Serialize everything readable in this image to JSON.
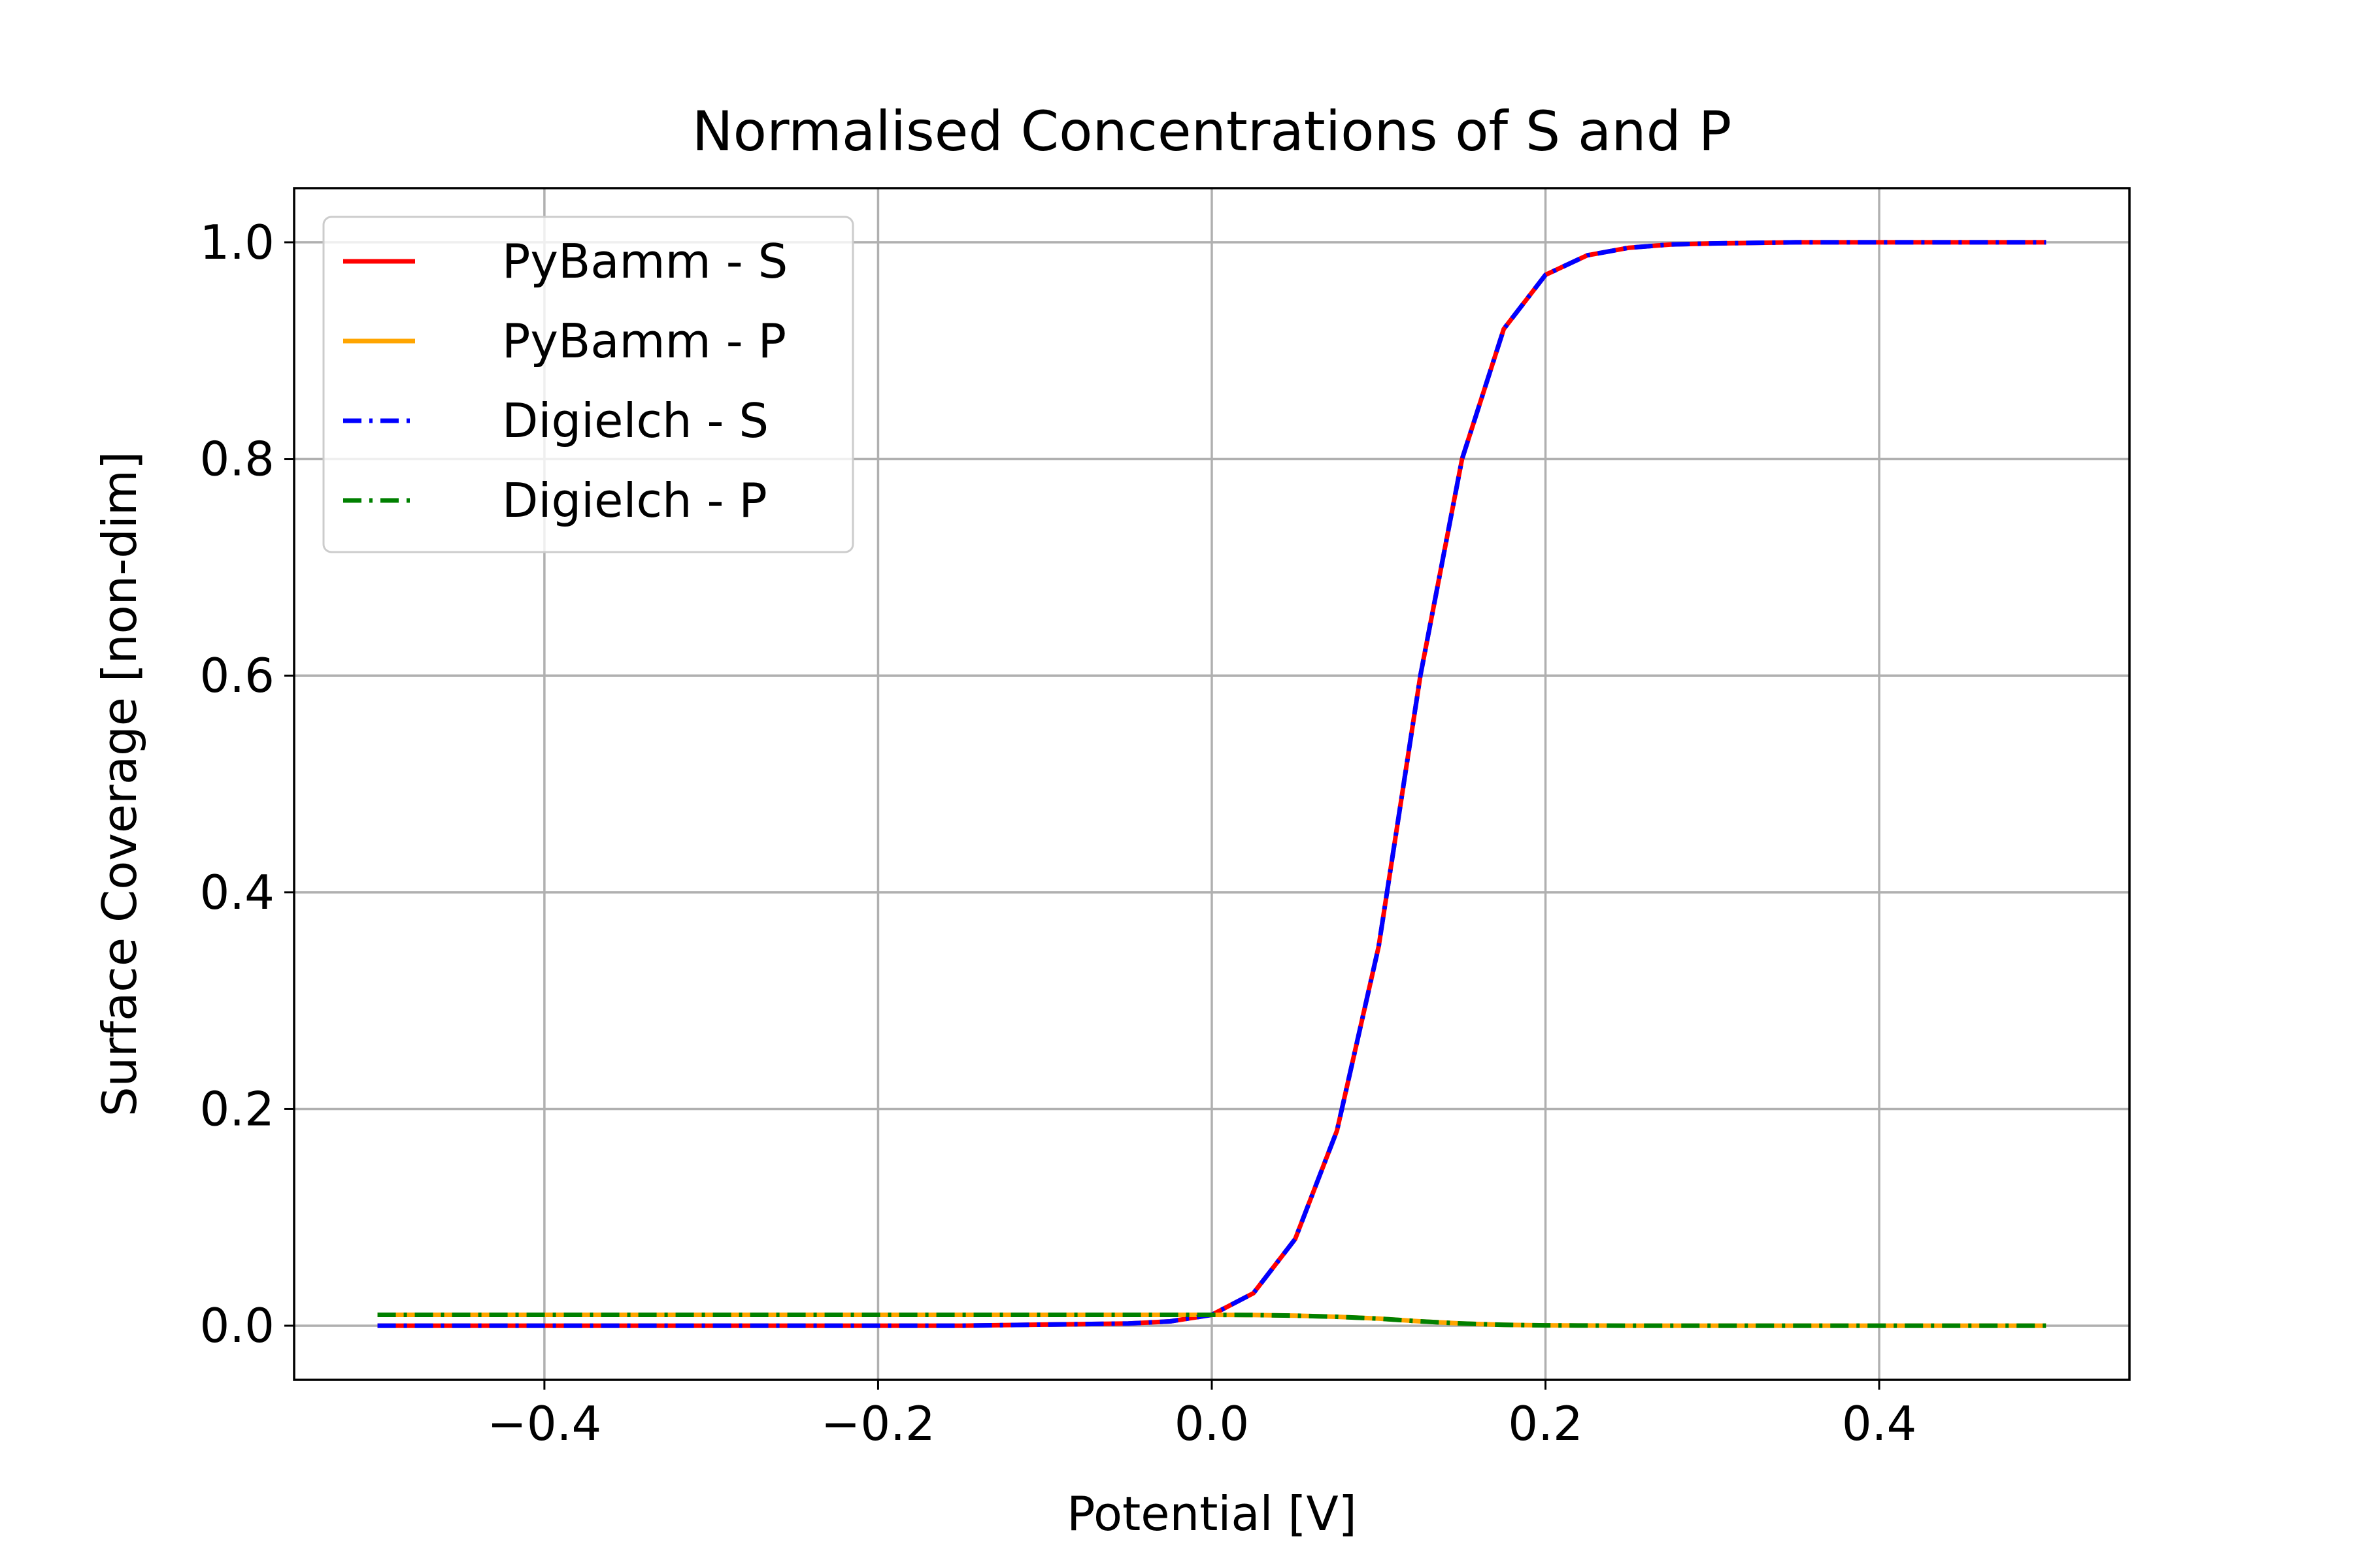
{
  "chart_data": {
    "type": "line",
    "title": "Normalised Concentrations of S and P",
    "xlabel": "Potential [V]",
    "ylabel": "Surface Coverage [non-dim]",
    "xlim": [
      -0.55,
      0.55
    ],
    "ylim": [
      -0.05,
      1.05
    ],
    "xticks": [
      -0.4,
      -0.2,
      0.0,
      0.2,
      0.4
    ],
    "xtick_labels": [
      "−0.4",
      "−0.2",
      "0.0",
      "0.2",
      "0.4"
    ],
    "yticks": [
      0.0,
      0.2,
      0.4,
      0.6,
      0.8,
      1.0
    ],
    "ytick_labels": [
      "0.0",
      "0.2",
      "0.4",
      "0.6",
      "0.8",
      "1.0"
    ],
    "grid": true,
    "legend_position": "upper-left",
    "x": [
      -0.5,
      -0.45,
      -0.4,
      -0.35,
      -0.3,
      -0.25,
      -0.2,
      -0.15,
      -0.1,
      -0.05,
      -0.025,
      0.0,
      0.025,
      0.05,
      0.075,
      0.1,
      0.125,
      0.15,
      0.175,
      0.2,
      0.225,
      0.25,
      0.275,
      0.3,
      0.35,
      0.4,
      0.45,
      0.5
    ],
    "series": [
      {
        "name": "PyBamm - S",
        "color": "#ff0000",
        "style": "solid",
        "values": [
          0.0,
          0.0,
          0.0,
          0.0,
          0.0,
          0.0,
          0.0,
          0.0,
          0.001,
          0.002,
          0.004,
          0.01,
          0.03,
          0.08,
          0.18,
          0.35,
          0.6,
          0.8,
          0.92,
          0.97,
          0.988,
          0.995,
          0.998,
          0.999,
          1.0,
          1.0,
          1.0,
          1.0
        ]
      },
      {
        "name": "PyBamm - P",
        "color": "#ffa500",
        "style": "solid",
        "values": [
          0.01,
          0.01,
          0.01,
          0.01,
          0.01,
          0.01,
          0.01,
          0.01,
          0.01,
          0.01,
          0.01,
          0.01,
          0.0098,
          0.0092,
          0.0082,
          0.0065,
          0.004,
          0.002,
          0.0008,
          0.0003,
          0.0001,
          0.0,
          0.0,
          0.0,
          0.0,
          0.0,
          0.0,
          0.0
        ]
      },
      {
        "name": "Digielch - S",
        "color": "#0000ff",
        "style": "dashdot",
        "values": [
          0.0,
          0.0,
          0.0,
          0.0,
          0.0,
          0.0,
          0.0,
          0.0,
          0.001,
          0.002,
          0.004,
          0.01,
          0.03,
          0.08,
          0.18,
          0.35,
          0.6,
          0.8,
          0.92,
          0.97,
          0.988,
          0.995,
          0.998,
          0.999,
          1.0,
          1.0,
          1.0,
          1.0
        ]
      },
      {
        "name": "Digielch - P",
        "color": "#008000",
        "style": "dashdot",
        "values": [
          0.01,
          0.01,
          0.01,
          0.01,
          0.01,
          0.01,
          0.01,
          0.01,
          0.01,
          0.01,
          0.01,
          0.01,
          0.0098,
          0.0092,
          0.0082,
          0.0065,
          0.004,
          0.002,
          0.0008,
          0.0003,
          0.0001,
          0.0,
          0.0,
          0.0,
          0.0,
          0.0,
          0.0,
          0.0
        ]
      }
    ]
  }
}
